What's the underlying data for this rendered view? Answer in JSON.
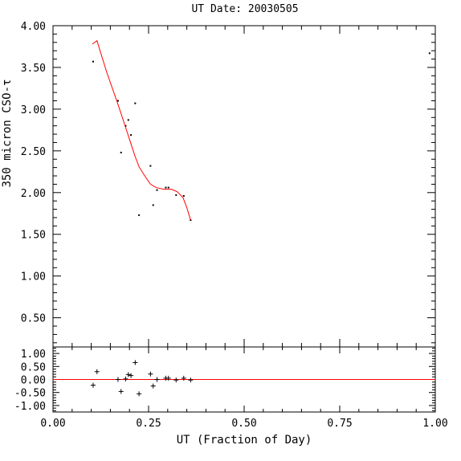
{
  "chart_data": {
    "title": "UT Date: 20030505",
    "xlabel": "UT (Fraction of Day)",
    "ylabel": "350 micron CSO-τ",
    "main_panel": {
      "type": "scatter",
      "xlim": [
        0.0,
        1.0
      ],
      "ylim": [
        0.15,
        4.0
      ],
      "yticks": [
        "4.00",
        "3.50",
        "3.00",
        "2.50",
        "2.00",
        "1.50",
        "1.00",
        "0.50"
      ],
      "points": {
        "x": [
          0.105,
          0.17,
          0.178,
          0.19,
          0.197,
          0.204,
          0.215,
          0.225,
          0.255,
          0.262,
          0.272,
          0.295,
          0.302,
          0.322,
          0.342,
          0.36,
          0.985
        ],
        "y": [
          3.57,
          3.1,
          2.48,
          2.8,
          2.87,
          2.69,
          3.07,
          1.73,
          2.32,
          1.85,
          2.03,
          2.06,
          2.06,
          1.97,
          1.96,
          1.67,
          3.67
        ]
      },
      "fit_line": {
        "color": "#ff0000",
        "x": [
          0.103,
          0.115,
          0.14,
          0.172,
          0.19,
          0.205,
          0.215,
          0.225,
          0.24,
          0.255,
          0.27,
          0.29,
          0.31,
          0.325,
          0.34,
          0.35,
          0.36
        ],
        "y": [
          3.78,
          3.82,
          3.45,
          3.03,
          2.78,
          2.57,
          2.43,
          2.31,
          2.2,
          2.1,
          2.06,
          2.04,
          2.04,
          2.01,
          1.94,
          1.82,
          1.67
        ]
      }
    },
    "residual_panel": {
      "type": "scatter",
      "xlim": [
        0.0,
        1.0
      ],
      "ylim": [
        -1.25,
        1.25
      ],
      "yticks": [
        "1.00",
        "0.50",
        "0.00",
        "-0.50",
        "-1.00"
      ],
      "zero_line_color": "#ff0000",
      "points": {
        "x": [
          0.105,
          0.115,
          0.17,
          0.178,
          0.19,
          0.197,
          0.204,
          0.215,
          0.225,
          0.255,
          0.262,
          0.272,
          0.295,
          0.302,
          0.322,
          0.342,
          0.36
        ],
        "y": [
          -0.22,
          0.3,
          0.0,
          -0.46,
          0.02,
          0.19,
          0.15,
          0.65,
          -0.55,
          0.21,
          -0.25,
          0.0,
          0.05,
          0.05,
          -0.02,
          0.05,
          -0.02
        ]
      }
    },
    "xticks": [
      "0.00",
      "0.25",
      "0.50",
      "0.75",
      "1.00"
    ],
    "xtick_values": [
      0.0,
      0.25,
      0.5,
      0.75,
      1.0
    ]
  }
}
